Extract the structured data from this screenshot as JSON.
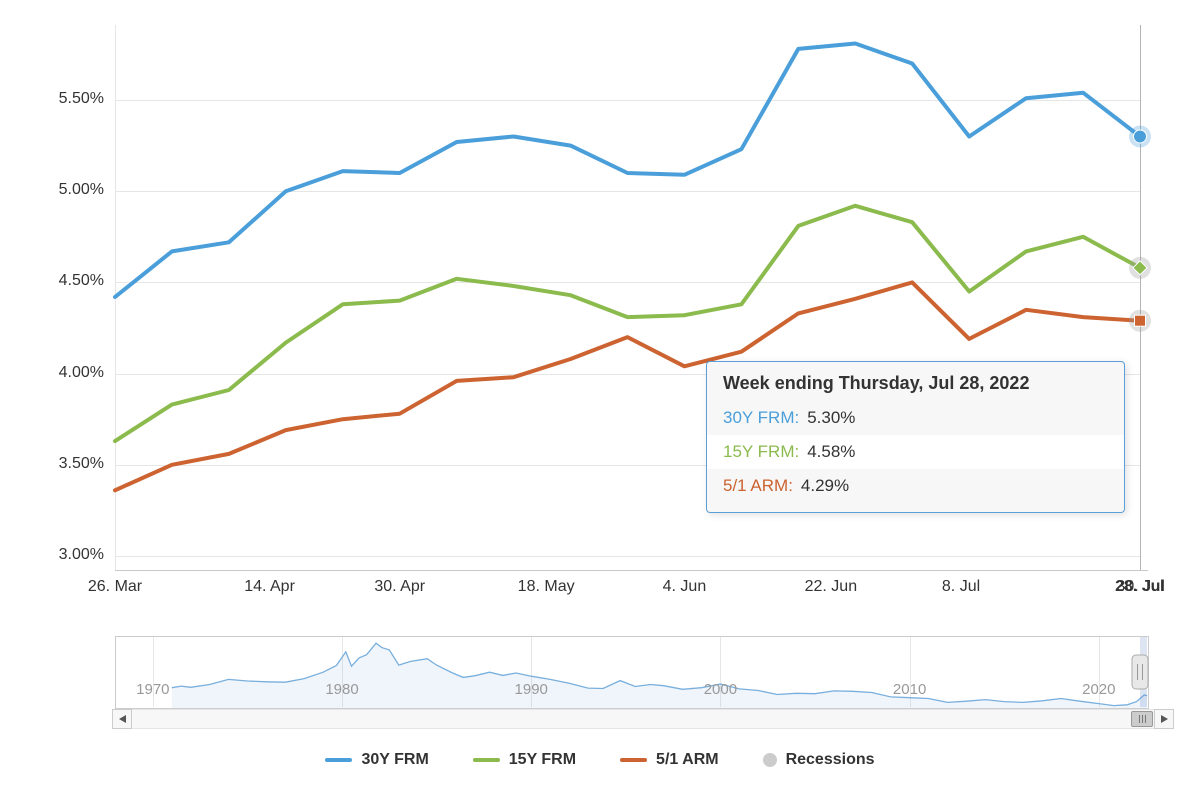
{
  "chart_data": {
    "type": "line",
    "x": [
      "Mar 24",
      "Mar 31",
      "Apr 7",
      "Apr 14",
      "Apr 21",
      "Apr 28",
      "May 5",
      "May 12",
      "May 19",
      "May 26",
      "Jun 2",
      "Jun 9",
      "Jun 16",
      "Jun 23",
      "Jun 30",
      "Jul 7",
      "Jul 14",
      "Jul 21",
      "Jul 28"
    ],
    "series": [
      {
        "name": "30Y FRM",
        "color": "#4A9FDA",
        "halo": "rgba(74,159,218,0.30)",
        "marker": "circle",
        "values": [
          4.42,
          4.67,
          4.72,
          5.0,
          5.11,
          5.1,
          5.27,
          5.3,
          5.25,
          5.1,
          5.09,
          5.23,
          5.78,
          5.81,
          5.7,
          5.3,
          5.51,
          5.54,
          5.3
        ]
      },
      {
        "name": "15Y FRM",
        "color": "#8BBA4D",
        "halo": "rgba(153,153,153,0.30)",
        "marker": "diamond",
        "values": [
          3.63,
          3.83,
          3.91,
          4.17,
          4.38,
          4.4,
          4.52,
          4.48,
          4.43,
          4.31,
          4.32,
          4.38,
          4.81,
          4.92,
          4.83,
          4.45,
          4.67,
          4.75,
          4.58
        ]
      },
      {
        "name": "5/1 ARM",
        "color": "#CC6330",
        "halo": "rgba(153,153,153,0.30)",
        "marker": "square",
        "values": [
          3.36,
          3.5,
          3.56,
          3.69,
          3.75,
          3.78,
          3.96,
          3.98,
          4.08,
          4.2,
          4.04,
          4.12,
          4.33,
          4.41,
          4.5,
          4.19,
          4.35,
          4.31,
          4.29
        ]
      }
    ],
    "ylim": [
      2.92,
      5.93
    ],
    "grid": true,
    "legend_position": "bottom",
    "y_ticks": [
      {
        "label": "3.00%",
        "value": 3.0
      },
      {
        "label": "3.50%",
        "value": 3.5
      },
      {
        "label": "4.00%",
        "value": 4.0
      },
      {
        "label": "4.50%",
        "value": 4.5
      },
      {
        "label": "5.00%",
        "value": 5.0
      },
      {
        "label": "5.50%",
        "value": 5.5
      }
    ],
    "x_days_total": 126,
    "x_ticks": [
      {
        "label": "26. Mar",
        "day": 0
      },
      {
        "label": "14. Apr",
        "day": 19
      },
      {
        "label": "30. Apr",
        "day": 35
      },
      {
        "label": "18. May",
        "day": 53
      },
      {
        "label": "4. Jun",
        "day": 70
      },
      {
        "label": "22. Jun",
        "day": 88
      },
      {
        "label": "8. Jul",
        "day": 104
      },
      {
        "label": "30. Jul",
        "day": 126
      },
      {
        "label": "28. Jul",
        "day": 126,
        "bold": true
      }
    ],
    "navigator": {
      "x_range": [
        1968,
        2022.6
      ],
      "y_range": [
        2.2,
        19.3
      ],
      "line_color": "#79AFDD",
      "fill_color": "rgba(121,175,221,0.12)",
      "labels": [
        {
          "text": "1970",
          "year": 1970
        },
        {
          "text": "1980",
          "year": 1980
        },
        {
          "text": "1990",
          "year": 1990
        },
        {
          "text": "2000",
          "year": 2000
        },
        {
          "text": "2010",
          "year": 2010
        },
        {
          "text": "2020",
          "year": 2020
        }
      ],
      "points": [
        [
          1971,
          7.3
        ],
        [
          1971.5,
          7.7
        ],
        [
          1972,
          7.4
        ],
        [
          1973,
          8.1
        ],
        [
          1974,
          9.4
        ],
        [
          1975,
          9.0
        ],
        [
          1976,
          8.8
        ],
        [
          1977,
          8.7
        ],
        [
          1978,
          9.6
        ],
        [
          1979,
          11.2
        ],
        [
          1979.7,
          12.9
        ],
        [
          1980.2,
          16.3
        ],
        [
          1980.5,
          12.7
        ],
        [
          1980.9,
          14.8
        ],
        [
          1981.3,
          15.6
        ],
        [
          1981.8,
          18.5
        ],
        [
          1982.1,
          17.4
        ],
        [
          1982.5,
          16.8
        ],
        [
          1983,
          13.0
        ],
        [
          1983.6,
          13.9
        ],
        [
          1984.5,
          14.6
        ],
        [
          1985,
          13.0
        ],
        [
          1985.8,
          11.1
        ],
        [
          1986.4,
          9.9
        ],
        [
          1987,
          10.3
        ],
        [
          1987.8,
          11.2
        ],
        [
          1988.5,
          10.4
        ],
        [
          1989.2,
          11.0
        ],
        [
          1990,
          10.2
        ],
        [
          1991,
          9.4
        ],
        [
          1992,
          8.4
        ],
        [
          1993,
          7.2
        ],
        [
          1993.8,
          7.1
        ],
        [
          1994.7,
          9.1
        ],
        [
          1995.5,
          7.6
        ],
        [
          1996.3,
          8.1
        ],
        [
          1997,
          7.8
        ],
        [
          1998,
          6.9
        ],
        [
          1999,
          7.3
        ],
        [
          2000,
          8.2
        ],
        [
          2001,
          7.0
        ],
        [
          2002,
          6.6
        ],
        [
          2003,
          5.6
        ],
        [
          2004,
          5.9
        ],
        [
          2005,
          5.8
        ],
        [
          2006,
          6.5
        ],
        [
          2007,
          6.4
        ],
        [
          2008,
          6.1
        ],
        [
          2009,
          5.0
        ],
        [
          2010,
          4.8
        ],
        [
          2011,
          4.6
        ],
        [
          2012,
          3.6
        ],
        [
          2013,
          3.9
        ],
        [
          2014,
          4.3
        ],
        [
          2015,
          3.8
        ],
        [
          2016,
          3.6
        ],
        [
          2017,
          4.0
        ],
        [
          2018,
          4.6
        ],
        [
          2019,
          3.9
        ],
        [
          2020,
          3.3
        ],
        [
          2020.8,
          2.8
        ],
        [
          2021.5,
          3.0
        ],
        [
          2022,
          3.8
        ],
        [
          2022.4,
          5.5
        ],
        [
          2022.55,
          5.3
        ]
      ]
    }
  },
  "tooltip": {
    "title": "Week ending Thursday, Jul 28, 2022",
    "border_color": "#5C9FD6",
    "rows": [
      {
        "label": "30Y FRM",
        "value": "5.30%",
        "color": "#4A9FDA",
        "highlight": false
      },
      {
        "label": "15Y FRM",
        "value": "4.58%",
        "color": "#8BBA4D",
        "highlight": true
      },
      {
        "label": "5/1 ARM",
        "value": "4.29%",
        "color": "#CC6330",
        "highlight": false
      }
    ]
  },
  "legend": {
    "items": [
      {
        "label": "30Y FRM",
        "color": "#4A9FDA",
        "type": "line"
      },
      {
        "label": "15Y FRM",
        "color": "#8BBA4D",
        "type": "line"
      },
      {
        "label": "5/1 ARM",
        "color": "#CC6330",
        "type": "line"
      },
      {
        "label": "Recessions",
        "color": "#CCCCCC",
        "type": "circle"
      }
    ]
  }
}
